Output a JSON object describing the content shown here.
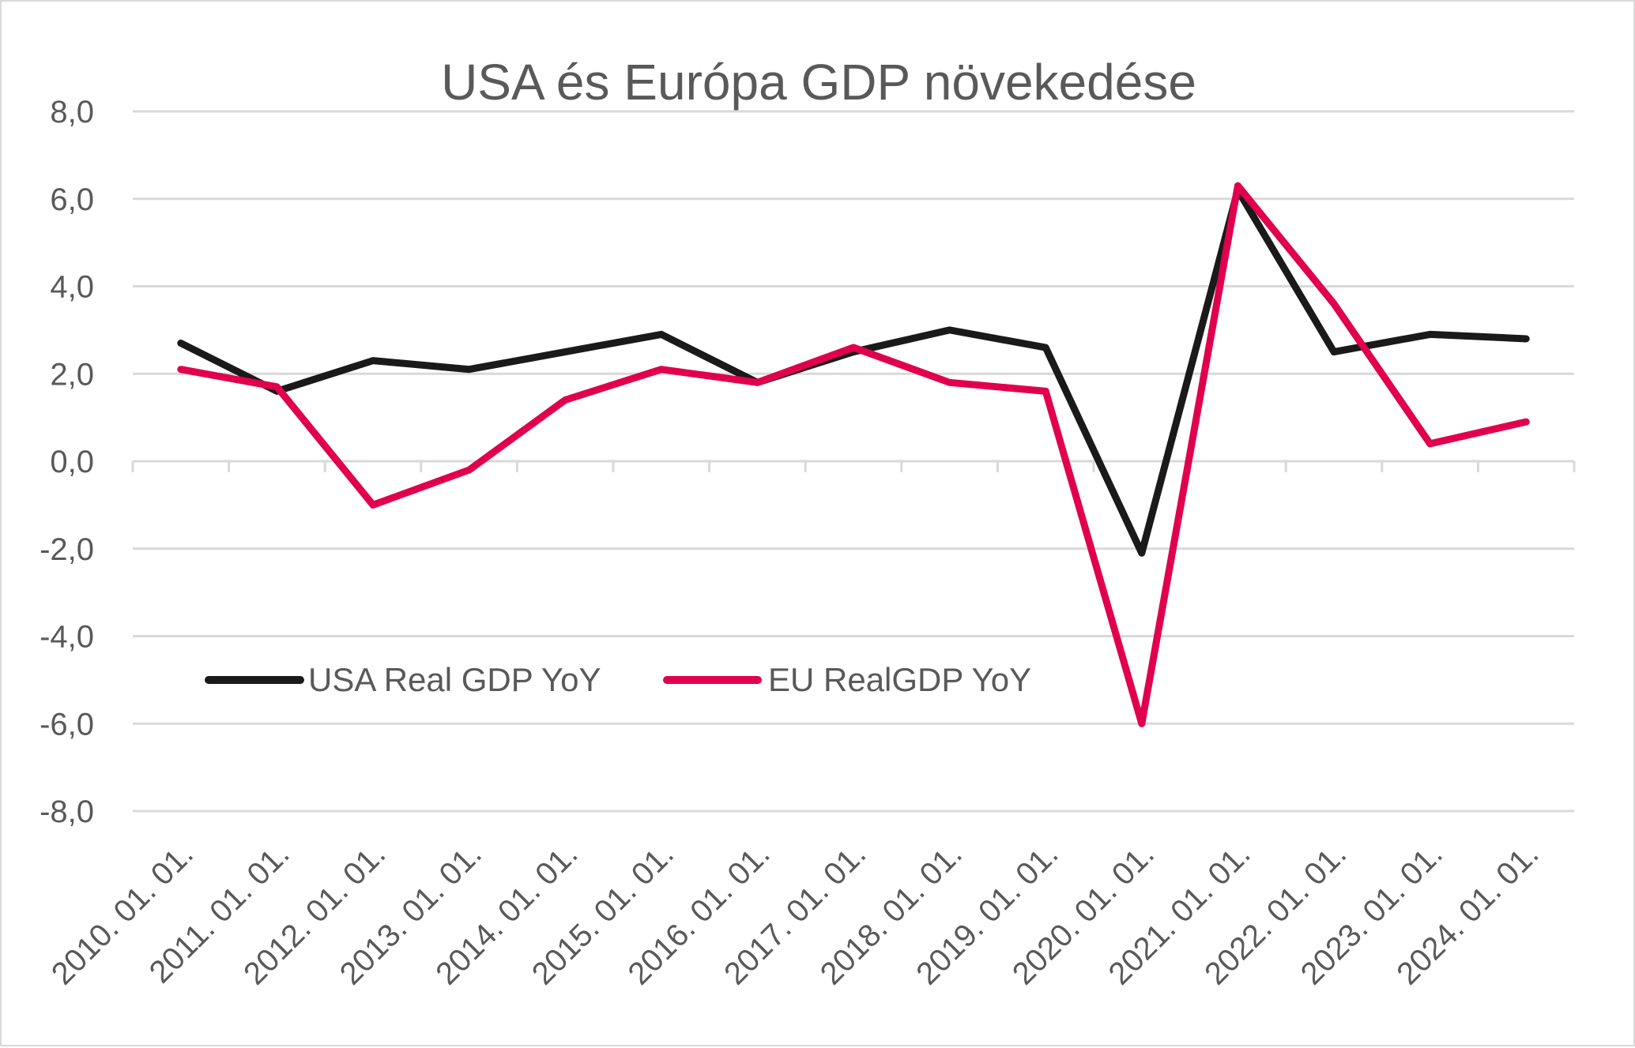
{
  "chart_data": {
    "type": "line",
    "title": "USA és Európa GDP növekedése",
    "xlabel": "",
    "ylabel": "",
    "ylim": [
      -8,
      8
    ],
    "yticks": [
      "8,0",
      "6,0",
      "4,0",
      "2,0",
      "0,0",
      "-2,0",
      "-4,0",
      "-6,0",
      "-8,0"
    ],
    "ytick_values": [
      8,
      6,
      4,
      2,
      0,
      -2,
      -4,
      -6,
      -8
    ],
    "grid": true,
    "legend_position": "lower-left",
    "categories": [
      "2010. 01. 01.",
      "2011. 01. 01.",
      "2012. 01. 01.",
      "2013. 01. 01.",
      "2014. 01. 01.",
      "2015. 01. 01.",
      "2016. 01. 01.",
      "2017. 01. 01.",
      "2018. 01. 01.",
      "2019. 01. 01.",
      "2020. 01. 01.",
      "2021. 01. 01.",
      "2022. 01. 01.",
      "2023. 01. 01.",
      "2024. 01. 01."
    ],
    "series": [
      {
        "name": "USA Real GDP YoY",
        "color": "#1a1a1a",
        "values": [
          2.7,
          1.6,
          2.3,
          2.1,
          2.5,
          2.9,
          1.8,
          2.5,
          3.0,
          2.6,
          -2.1,
          6.2,
          2.5,
          2.9,
          2.8
        ]
      },
      {
        "name": "EU RealGDP YoY",
        "color": "#e0004d",
        "values": [
          2.1,
          1.7,
          -1.0,
          -0.2,
          1.4,
          2.1,
          1.8,
          2.6,
          1.8,
          1.6,
          -6.0,
          6.3,
          3.6,
          0.4,
          0.9
        ]
      }
    ]
  }
}
